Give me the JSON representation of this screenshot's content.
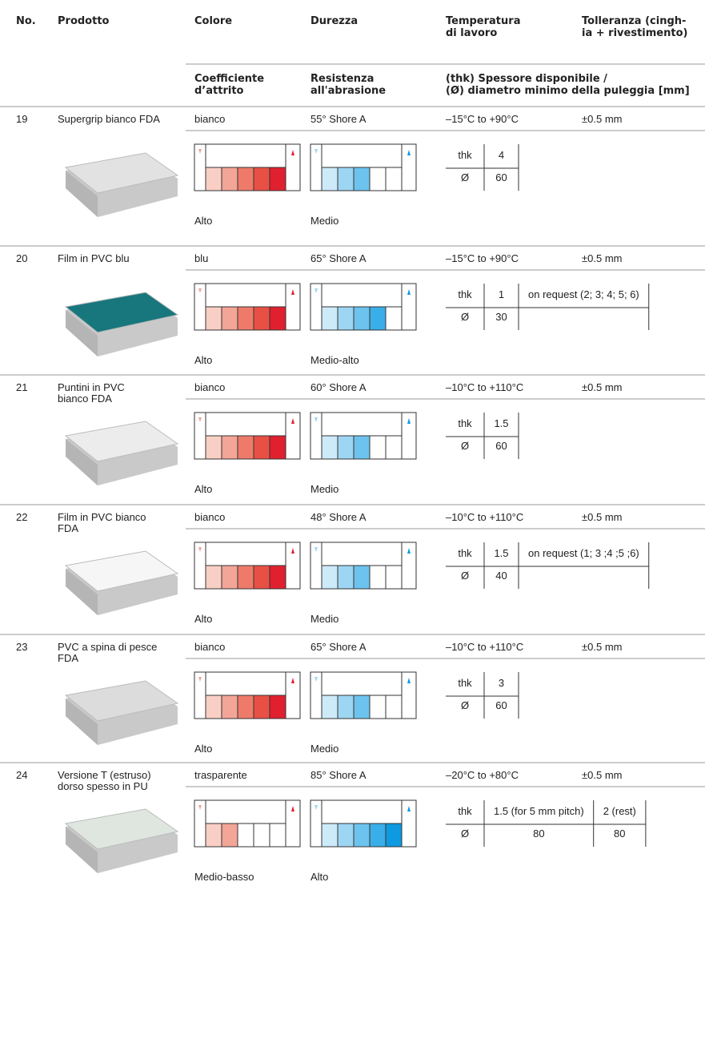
{
  "header": {
    "columns": [
      [
        "No."
      ],
      [
        "Prodotto"
      ],
      [
        "Colore"
      ],
      [
        "Durezza"
      ],
      [
        "Temperatura",
        "di lavoro"
      ],
      [
        "Tolleranza (cingh-",
        "ia + rivestimento)"
      ]
    ],
    "subcolumns": [
      [
        "Coefficiente",
        "d’attrito"
      ],
      [
        "Resistenza",
        "all'abrasione"
      ],
      [
        "(thk) Spessore disponibile /",
        "(Ø) diametro minimo della puleggia [mm]"
      ]
    ]
  },
  "thickness_labels": [
    "thk",
    "Ø"
  ],
  "rows": [
    {
      "no": 19,
      "product": [
        "Supergrip bianco FDA"
      ],
      "color": "bianco",
      "hardness": "55° Shore A",
      "temperature": "–15°C to +90°C",
      "tolerance": "±0.5 mm",
      "friction": {
        "level": 5,
        "label": "Alto"
      },
      "abrasion": {
        "level": 3,
        "label": "Medio"
      },
      "thickness": [
        {
          "thk": "4",
          "dia": "60"
        }
      ],
      "sample_color": "#e2e2e2"
    },
    {
      "no": 20,
      "product": [
        "Film in PVC blu"
      ],
      "color": "blu",
      "hardness": "65° Shore A",
      "temperature": "–15°C to +90°C",
      "tolerance": "±0.5 mm",
      "friction": {
        "level": 5,
        "label": "Alto"
      },
      "abrasion": {
        "level": 4,
        "label": "Medio-alto"
      },
      "thickness": [
        {
          "thk": "1",
          "dia": "30"
        },
        {
          "thk": "on request (2; 3; 4; 5; 6)"
        }
      ],
      "sample_color": "#17777d"
    },
    {
      "no": 21,
      "product": [
        "Puntini in PVC",
        "bianco FDA"
      ],
      "color": "bianco",
      "hardness": "60° Shore A",
      "temperature": "–10°C to +110°C",
      "tolerance": "±0.5 mm",
      "friction": {
        "level": 5,
        "label": "Alto"
      },
      "abrasion": {
        "level": 3,
        "label": "Medio"
      },
      "thickness": [
        {
          "thk": "1.5",
          "dia": "60"
        }
      ],
      "sample_color": "#ececec"
    },
    {
      "no": 22,
      "product": [
        "Film in PVC bianco",
        "FDA"
      ],
      "color": "bianco",
      "hardness": "48° Shore A",
      "temperature": "–10°C to +110°C",
      "tolerance": "±0.5 mm",
      "friction": {
        "level": 5,
        "label": "Alto"
      },
      "abrasion": {
        "level": 3,
        "label": "Medio"
      },
      "thickness": [
        {
          "thk": "1.5",
          "dia": "40"
        },
        {
          "thk": "on request (1; 3 ;4 ;5 ;6)"
        }
      ],
      "sample_color": "#f6f6f6"
    },
    {
      "no": 23,
      "product": [
        "PVC a spina di pesce",
        "FDA"
      ],
      "color": "bianco",
      "hardness": "65° Shore A",
      "temperature": "–10°C to +110°C",
      "tolerance": "±0.5 mm",
      "friction": {
        "level": 5,
        "label": "Alto"
      },
      "abrasion": {
        "level": 3,
        "label": "Medio"
      },
      "thickness": [
        {
          "thk": "3",
          "dia": "60"
        }
      ],
      "sample_color": "#dcdcdc"
    },
    {
      "no": 24,
      "product": [
        "Versione T (estruso)",
        "dorso spesso in PU"
      ],
      "color": "trasparente",
      "hardness": "85° Shore A",
      "temperature": "–20°C to +80°C",
      "tolerance": "±0.5 mm",
      "friction": {
        "level": 2,
        "label": "Medio-basso"
      },
      "abrasion": {
        "level": 5,
        "label": "Alto"
      },
      "thickness": [
        {
          "thk": "1.5 (for 5 mm pitch)",
          "dia": "80"
        },
        {
          "thk": "2 (rest)",
          "dia": "80"
        }
      ],
      "sample_color": "#dfe6df"
    }
  ]
}
